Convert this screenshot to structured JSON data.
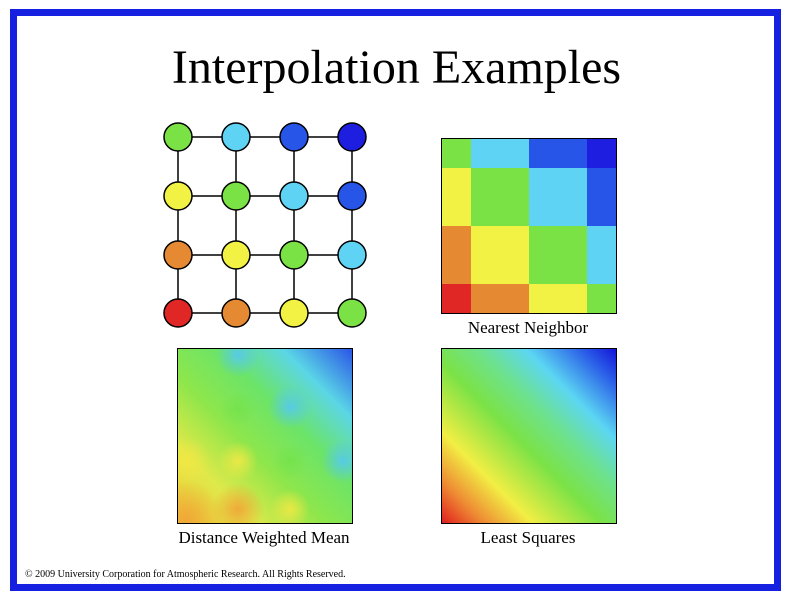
{
  "title": "Interpolation Examples",
  "grid_colors": [
    [
      "#7be246",
      "#5fd3f3",
      "#2655e8",
      "#1d1ee0"
    ],
    [
      "#f2f244",
      "#7be246",
      "#5fd3f3",
      "#2655e8"
    ],
    [
      "#e58a33",
      "#f2f244",
      "#7be246",
      "#5fd3f3"
    ],
    [
      "#e12626",
      "#e58a33",
      "#f2f244",
      "#7be246"
    ]
  ],
  "nearest_colors": [
    [
      "#7be246",
      "#5fd3f3",
      "#2655e8",
      "#1d1ee0"
    ],
    [
      "#f2f244",
      "#7be246",
      "#5fd3f3",
      "#2655e8"
    ],
    [
      "#e58a33",
      "#f2f244",
      "#7be246",
      "#5fd3f3"
    ],
    [
      "#e12626",
      "#e58a33",
      "#f2f244",
      "#7be246"
    ]
  ],
  "captions": {
    "nearest": "Nearest Neighbor",
    "distance": "Distance Weighted Mean",
    "least": "Least Squares"
  },
  "footer": "© 2009 University Corporation for Atmospheric Research.  All Rights Reserved.",
  "border_color": "#1520e0"
}
